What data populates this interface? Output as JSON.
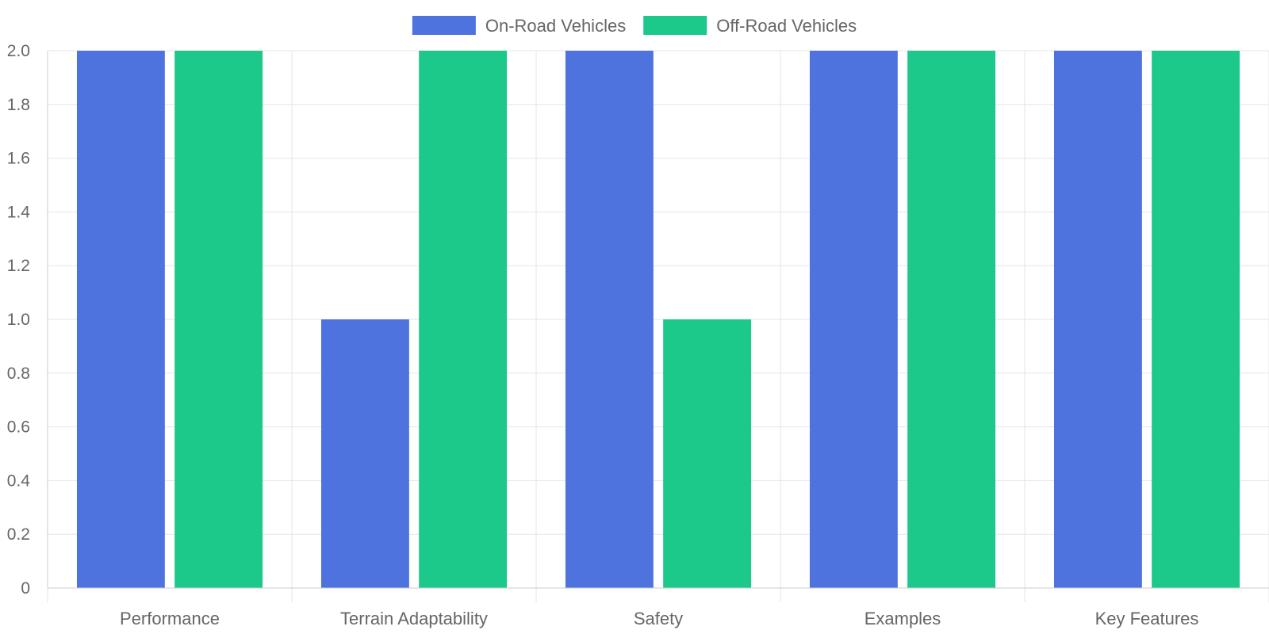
{
  "chart_data": {
    "type": "bar",
    "title": "",
    "xlabel": "",
    "ylabel": "",
    "categories": [
      "Performance",
      "Terrain Adaptability",
      "Safety",
      "Examples",
      "Key Features"
    ],
    "series": [
      {
        "name": "On-Road Vehicles",
        "color": "#4e73df",
        "values": [
          2,
          1,
          2,
          2,
          2
        ]
      },
      {
        "name": "Off-Road Vehicles",
        "color": "#1cc88a",
        "values": [
          2,
          2,
          1,
          2,
          2
        ]
      }
    ],
    "ylim": [
      0,
      2.0
    ],
    "yticks": [
      "0",
      "0.2",
      "0.4",
      "0.6",
      "0.8",
      "1.0",
      "1.2",
      "1.4",
      "1.6",
      "1.8",
      "2.0"
    ],
    "grid": true,
    "legend_position": "top-center"
  }
}
